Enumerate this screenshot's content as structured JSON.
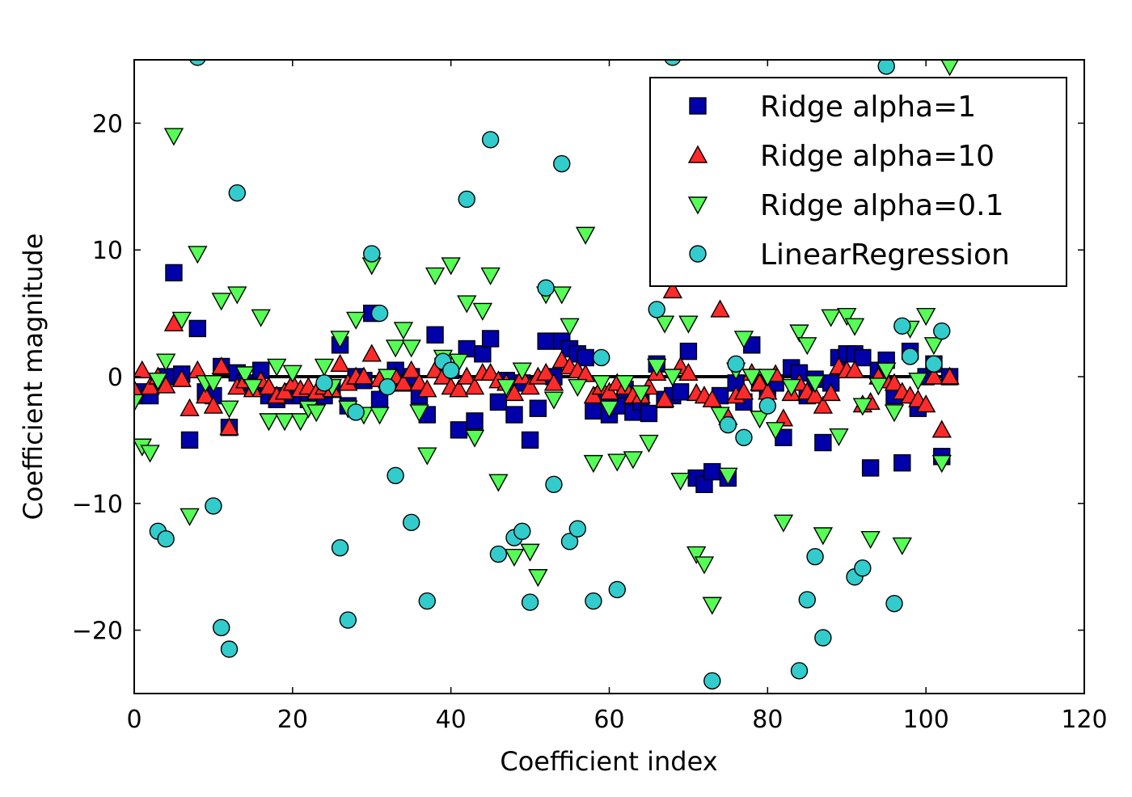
{
  "chart_data": {
    "type": "scatter",
    "title": "",
    "xlabel": "Coefficient index",
    "ylabel": "Coefficient magnitude",
    "xlim": [
      0,
      120
    ],
    "ylim": [
      -25,
      25
    ],
    "xticks": [
      0,
      20,
      40,
      60,
      80,
      100,
      120
    ],
    "yticks": [
      -20,
      -10,
      0,
      10,
      20
    ],
    "xtick_labels": [
      "0",
      "20",
      "40",
      "60",
      "80",
      "100",
      "120"
    ],
    "ytick_labels": [
      "−20",
      "−10",
      "0",
      "10",
      "20"
    ],
    "grid": false,
    "legend_position": "top-right",
    "hline": {
      "y": 0,
      "x_range": [
        0,
        104
      ],
      "color": "#000000"
    },
    "series": [
      {
        "name": "Ridge alpha=1",
        "marker": "square",
        "color": "#0000aa",
        "x": [
          0,
          1,
          2,
          3,
          4,
          5,
          6,
          7,
          8,
          9,
          10,
          11,
          12,
          13,
          14,
          15,
          16,
          17,
          18,
          19,
          20,
          21,
          22,
          23,
          24,
          25,
          26,
          27,
          28,
          29,
          30,
          31,
          32,
          33,
          34,
          35,
          36,
          37,
          38,
          39,
          40,
          41,
          42,
          43,
          44,
          45,
          46,
          47,
          48,
          49,
          50,
          51,
          52,
          53,
          54,
          55,
          56,
          57,
          58,
          59,
          60,
          61,
          62,
          63,
          64,
          65,
          66,
          67,
          68,
          69,
          70,
          71,
          72,
          73,
          74,
          75,
          76,
          77,
          78,
          79,
          80,
          81,
          82,
          83,
          84,
          85,
          86,
          87,
          88,
          89,
          90,
          91,
          92,
          93,
          94,
          95,
          96,
          97,
          98,
          99,
          100,
          101,
          102,
          103
        ],
        "y": [
          -1.5,
          -1.2,
          -1.5,
          -0.5,
          0.0,
          8.2,
          0.2,
          -5.0,
          3.8,
          -1.2,
          -1.5,
          0.8,
          -4.0,
          0.3,
          -0.5,
          -0.8,
          0.5,
          -1.5,
          -1.8,
          -1.5,
          -1.2,
          -1.5,
          -1.8,
          -1.5,
          -1.5,
          -1.0,
          2.5,
          -2.3,
          0.0,
          -0.3,
          5.0,
          -1.8,
          -0.5,
          0.5,
          -0.5,
          0.0,
          -1.5,
          -3.0,
          3.3,
          0.8,
          0.5,
          -4.2,
          2.2,
          -3.5,
          1.8,
          3.0,
          -2.0,
          -0.3,
          -3.0,
          -0.5,
          -5.0,
          -2.5,
          2.8,
          0.0,
          2.8,
          2.2,
          1.8,
          1.5,
          -2.7,
          -1.5,
          -3.0,
          -2.3,
          -1.0,
          -2.8,
          -2.0,
          -2.9,
          1.0,
          -1.8,
          -1.5,
          -1.2,
          2.0,
          -8.0,
          -8.5,
          -7.5,
          -1.5,
          -8.0,
          -0.5,
          -2.0,
          2.5,
          -0.5,
          -1.0,
          -0.5,
          -4.8,
          0.7,
          0.3,
          -1.5,
          -0.2,
          -5.2,
          -0.5,
          1.5,
          1.8,
          1.8,
          1.5,
          -7.2,
          0.5,
          1.3,
          -1.5,
          -6.8,
          2.0,
          -2.5,
          0.0,
          1.0,
          -6.3,
          0.0
        ]
      },
      {
        "name": "Ridge alpha=10",
        "marker": "triangle-up",
        "color": "#ff2a2a",
        "x": [
          0,
          1,
          2,
          3,
          4,
          5,
          6,
          7,
          8,
          9,
          10,
          11,
          12,
          13,
          14,
          15,
          16,
          17,
          18,
          19,
          20,
          21,
          22,
          23,
          24,
          25,
          26,
          27,
          28,
          29,
          30,
          31,
          32,
          33,
          34,
          35,
          36,
          37,
          38,
          39,
          40,
          41,
          42,
          43,
          44,
          45,
          46,
          47,
          48,
          49,
          50,
          51,
          52,
          53,
          54,
          55,
          56,
          57,
          58,
          59,
          60,
          61,
          62,
          63,
          64,
          65,
          66,
          67,
          68,
          69,
          70,
          71,
          72,
          73,
          74,
          75,
          76,
          77,
          78,
          79,
          80,
          81,
          82,
          83,
          84,
          85,
          86,
          87,
          88,
          89,
          90,
          91,
          92,
          93,
          94,
          95,
          96,
          97,
          98,
          99,
          100,
          101,
          102,
          103
        ],
        "y": [
          -1.0,
          0.5,
          -0.8,
          0.0,
          -0.7,
          4.2,
          -0.2,
          -2.5,
          0.5,
          -1.5,
          -2.3,
          0.8,
          -4.0,
          -0.8,
          -0.3,
          -1.0,
          -0.3,
          -0.8,
          -1.5,
          -1.2,
          -0.5,
          -1.0,
          -0.8,
          -1.2,
          -0.8,
          -1.0,
          1.0,
          -0.5,
          0.0,
          0.0,
          1.8,
          -0.2,
          -0.3,
          0.0,
          -0.5,
          0.5,
          -0.5,
          -1.0,
          0.5,
          0.0,
          -0.8,
          -1.0,
          0.0,
          -0.8,
          0.3,
          0.3,
          -0.3,
          -0.5,
          -1.3,
          0.0,
          -0.8,
          0.0,
          0.3,
          -0.5,
          1.3,
          0.8,
          0.5,
          0.2,
          -1.5,
          -0.8,
          -1.2,
          -0.5,
          -0.8,
          -1.5,
          -1.5,
          -0.8,
          0.3,
          -1.8,
          6.8,
          0.8,
          0.3,
          -1.3,
          -1.5,
          -1.8,
          5.3,
          -3.2,
          -1.5,
          -1.2,
          0.3,
          -0.5,
          -1.2,
          0.2,
          -3.3,
          -1.3,
          -0.5,
          -1.2,
          -1.5,
          -2.3,
          -1.3,
          0.8,
          0.5,
          0.5,
          -2.2,
          -2.0,
          0.0,
          -0.3,
          -0.5,
          -1.2,
          -1.5,
          -1.8,
          -2.2,
          0.0,
          -4.2,
          0.0
        ]
      },
      {
        "name": "Ridge alpha=0.1",
        "marker": "triangle-down",
        "color": "#55ff55",
        "x": [
          0,
          1,
          2,
          3,
          4,
          5,
          6,
          7,
          8,
          9,
          10,
          11,
          12,
          13,
          14,
          15,
          16,
          17,
          18,
          19,
          20,
          21,
          22,
          23,
          24,
          25,
          26,
          27,
          28,
          29,
          30,
          31,
          32,
          33,
          34,
          35,
          36,
          37,
          38,
          39,
          40,
          41,
          42,
          43,
          44,
          45,
          46,
          47,
          48,
          49,
          50,
          51,
          52,
          53,
          54,
          55,
          56,
          57,
          58,
          59,
          60,
          61,
          62,
          63,
          64,
          65,
          66,
          67,
          68,
          69,
          70,
          71,
          72,
          73,
          74,
          75,
          76,
          77,
          78,
          79,
          80,
          81,
          82,
          83,
          84,
          85,
          86,
          87,
          88,
          89,
          90,
          91,
          92,
          93,
          94,
          95,
          96,
          97,
          98,
          99,
          100,
          101,
          102,
          103
        ],
        "y": [
          -2.0,
          -5.5,
          -6.0,
          -0.3,
          1.2,
          19.0,
          4.5,
          -11.0,
          9.7,
          -0.5,
          -0.5,
          6.0,
          -2.5,
          6.5,
          0.2,
          -0.8,
          4.7,
          -3.5,
          0.8,
          -3.5,
          0.3,
          -3.5,
          -2.5,
          -2.8,
          0.8,
          -0.8,
          3.0,
          -2.5,
          4.5,
          -3.0,
          8.8,
          -3.0,
          0.0,
          2.3,
          3.7,
          2.3,
          -2.8,
          -6.2,
          8.0,
          1.5,
          8.8,
          1.2,
          5.8,
          -4.8,
          5.2,
          8.0,
          -8.3,
          -0.8,
          -14.2,
          0.5,
          -13.8,
          -15.8,
          6.5,
          -1.8,
          6.5,
          4.0,
          -0.8,
          11.2,
          -6.8,
          -0.5,
          -2.5,
          -6.7,
          -0.5,
          -6.5,
          -1.3,
          -5.2,
          0.8,
          4.2,
          0.0,
          -8.2,
          4.2,
          -14.0,
          -14.8,
          -18.0,
          -3.0,
          -7.8,
          0.5,
          3.0,
          0.0,
          -3.3,
          0.0,
          -4.2,
          -11.5,
          -0.8,
          3.5,
          2.5,
          -0.5,
          -12.5,
          4.7,
          -4.7,
          4.8,
          4.0,
          -2.3,
          -12.8,
          -0.7,
          0.5,
          -2.8,
          -13.3,
          3.8,
          -0.3,
          4.8,
          2.5,
          -6.8,
          24.5
        ]
      },
      {
        "name": "LinearRegression",
        "marker": "circle",
        "color": "#33cccc",
        "x": [
          3,
          4,
          8,
          10,
          11,
          12,
          13,
          24,
          26,
          27,
          28,
          30,
          31,
          32,
          33,
          35,
          37,
          39,
          40,
          42,
          45,
          46,
          48,
          49,
          50,
          52,
          53,
          54,
          55,
          56,
          58,
          59,
          61,
          66,
          68,
          73,
          75,
          76,
          77,
          80,
          84,
          85,
          86,
          87,
          91,
          92,
          95,
          96,
          97,
          98,
          101,
          102
        ],
        "y": [
          -12.2,
          -12.8,
          25.2,
          -10.2,
          -19.8,
          -21.5,
          14.5,
          -0.5,
          -13.5,
          -19.2,
          -2.8,
          9.7,
          5.0,
          -0.8,
          -7.8,
          -11.5,
          -17.7,
          1.2,
          0.5,
          14.0,
          18.7,
          -14.0,
          -12.7,
          -12.2,
          -17.8,
          7.0,
          -8.5,
          16.8,
          -13.0,
          -12.0,
          -17.7,
          1.5,
          -16.8,
          5.3,
          25.2,
          -24.0,
          -3.8,
          1.0,
          -4.8,
          -2.3,
          -23.2,
          -17.6,
          -14.2,
          -20.6,
          -15.8,
          -15.1,
          24.5,
          -17.9,
          4.0,
          1.6,
          1.0,
          3.6
        ]
      }
    ]
  }
}
